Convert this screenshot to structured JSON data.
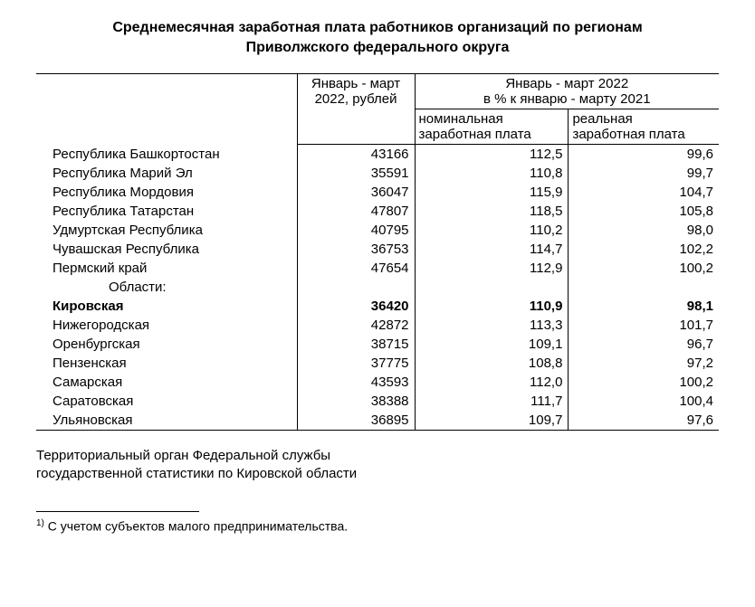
{
  "title_line1": "Среднемесячная заработная плата работников организаций по регионам",
  "title_line2": "Приволжского федерального округа",
  "header": {
    "col2_line1": "Январь - март",
    "col2_line2": "2022, рублей",
    "merged_line1": "Январь - март 2022",
    "merged_line2": "в % к январю - марту 2021",
    "sub_nom_line1": "номинальная",
    "sub_nom_line2": "заработная плата",
    "sub_real_line1": "реальная",
    "sub_real_line2": "заработная плата"
  },
  "section_label": "Области:",
  "rows": [
    {
      "region": "Республика Башкортостан",
      "value": "43166",
      "nominal": "112,5",
      "real": "99,6",
      "bold": false
    },
    {
      "region": "Республика Марий Эл",
      "value": "35591",
      "nominal": "110,8",
      "real": "99,7",
      "bold": false
    },
    {
      "region": "Республика Мордовия",
      "value": "36047",
      "nominal": "115,9",
      "real": "104,7",
      "bold": false
    },
    {
      "region": "Республика Татарстан",
      "value": "47807",
      "nominal": "118,5",
      "real": "105,8",
      "bold": false
    },
    {
      "region": "Удмуртская Республика",
      "value": "40795",
      "nominal": "110,2",
      "real": "98,0",
      "bold": false
    },
    {
      "region": "Чувашская Республика",
      "value": "36753",
      "nominal": "114,7",
      "real": "102,2",
      "bold": false
    },
    {
      "region": "Пермский край",
      "value": "47654",
      "nominal": "112,9",
      "real": "100,2",
      "bold": false
    }
  ],
  "rows2": [
    {
      "region": "Кировская",
      "value": "36420",
      "nominal": "110,9",
      "real": "98,1",
      "bold": true
    },
    {
      "region": "Нижегородская",
      "value": "42872",
      "nominal": "113,3",
      "real": "101,7",
      "bold": false
    },
    {
      "region": "Оренбургская",
      "value": "38715",
      "nominal": "109,1",
      "real": "96,7",
      "bold": false
    },
    {
      "region": "Пензенская",
      "value": "37775",
      "nominal": "108,8",
      "real": "97,2",
      "bold": false
    },
    {
      "region": "Самарская",
      "value": "43593",
      "nominal": "112,0",
      "real": "100,2",
      "bold": false
    },
    {
      "region": "Саратовская",
      "value": "38388",
      "nominal": "111,7",
      "real": "100,4",
      "bold": false
    },
    {
      "region": "Ульяновская",
      "value": "36895",
      "nominal": "109,7",
      "real": "97,6",
      "bold": false
    }
  ],
  "footer_line1": "Территориальный орган Федеральной службы",
  "footer_line2": "государственной статистики по Кировской области",
  "footnote_marker": "1)",
  "footnote_text": " С учетом субъектов малого предпринимательства."
}
